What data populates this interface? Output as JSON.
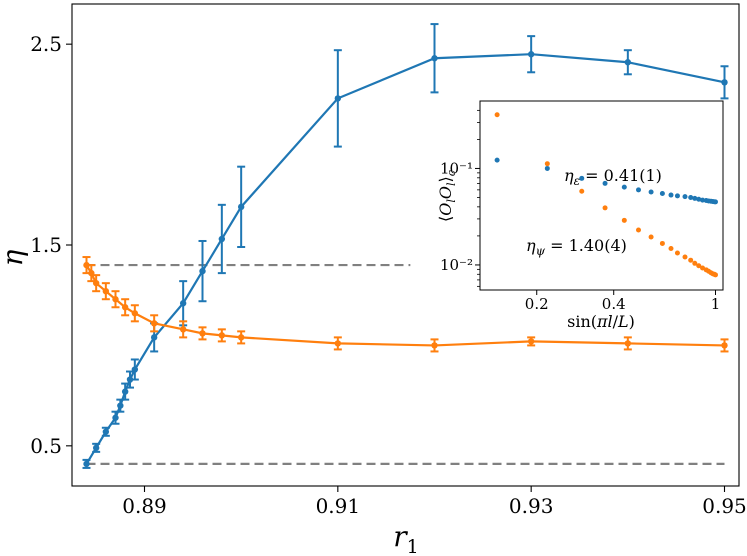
{
  "chart_data": [
    {
      "type": "line",
      "role": "main",
      "xlabel": "r",
      "xlabel_sub": "1",
      "ylabel": "η",
      "xlim": [
        0.8825,
        0.9515
      ],
      "ylim": [
        0.3,
        2.7
      ],
      "xticks": [
        0.89,
        0.91,
        0.93,
        0.95
      ],
      "xtick_labels": [
        "0.89",
        "0.91",
        "0.93",
        "0.95"
      ],
      "yticks": [
        0.5,
        1.5,
        2.5
      ],
      "ytick_labels": [
        "0.5",
        "1.5",
        "2.5"
      ],
      "series": [
        {
          "name": "blue",
          "color": "#1f77b4",
          "x": [
            0.884,
            0.885,
            0.886,
            0.887,
            0.8875,
            0.888,
            0.8885,
            0.889,
            0.891,
            0.894,
            0.896,
            0.898,
            0.9,
            0.91,
            0.92,
            0.93,
            0.94,
            0.95
          ],
          "y": [
            0.41,
            0.49,
            0.57,
            0.64,
            0.7,
            0.77,
            0.83,
            0.88,
            1.04,
            1.21,
            1.37,
            1.53,
            1.69,
            2.23,
            2.43,
            2.45,
            2.41,
            2.31
          ],
          "err": [
            0.02,
            0.02,
            0.02,
            0.03,
            0.03,
            0.04,
            0.04,
            0.05,
            0.07,
            0.11,
            0.15,
            0.17,
            0.2,
            0.24,
            0.17,
            0.09,
            0.06,
            0.08
          ]
        },
        {
          "name": "orange",
          "color": "#ff7f0e",
          "x": [
            0.884,
            0.8845,
            0.885,
            0.886,
            0.887,
            0.888,
            0.889,
            0.891,
            0.894,
            0.896,
            0.898,
            0.9,
            0.91,
            0.92,
            0.93,
            0.94,
            0.95
          ],
          "y": [
            1.4,
            1.36,
            1.31,
            1.27,
            1.23,
            1.19,
            1.16,
            1.11,
            1.08,
            1.06,
            1.05,
            1.04,
            1.01,
            1.0,
            1.02,
            1.01,
            1.0
          ],
          "err": [
            0.04,
            0.04,
            0.04,
            0.04,
            0.04,
            0.04,
            0.04,
            0.04,
            0.04,
            0.03,
            0.03,
            0.03,
            0.03,
            0.03,
            0.02,
            0.03,
            0.03
          ]
        }
      ],
      "reference_lines": [
        {
          "y": 1.4,
          "x_start": 0.884,
          "x_end": 0.9175,
          "color": "#808080",
          "style": "dashed"
        },
        {
          "y": 0.41,
          "x_start": 0.884,
          "x_end": 0.95,
          "color": "#808080",
          "style": "dashed"
        }
      ]
    },
    {
      "type": "scatter",
      "role": "inset",
      "scale": "log-log",
      "ylabel": "⟨O_l O_l⟩_c",
      "xlabel": "sin(πl/L)",
      "xlim": [
        0.12,
        1.07
      ],
      "ylim": [
        0.0055,
        0.5
      ],
      "xticks": [
        0.2,
        0.4,
        1
      ],
      "xtick_labels": [
        "0.2",
        "0.4",
        "1"
      ],
      "yticks": [
        0.01,
        0.1
      ],
      "ytick_labels": [
        "10⁻²",
        "10⁻¹"
      ],
      "annotations": [
        "η_ε = 0.41(1)",
        "η_ψ = 1.40(4)"
      ],
      "series": [
        {
          "name": "epsilon",
          "color": "#1f77b4",
          "x": [
            0.14,
            0.22,
            0.3,
            0.37,
            0.44,
            0.5,
            0.56,
            0.62,
            0.67,
            0.71,
            0.76,
            0.8,
            0.83,
            0.86,
            0.89,
            0.92,
            0.94,
            0.96,
            0.975,
            0.99,
            1.0
          ],
          "y": [
            0.122,
            0.1,
            0.079,
            0.07,
            0.064,
            0.06,
            0.057,
            0.055,
            0.053,
            0.052,
            0.051,
            0.05,
            0.049,
            0.048,
            0.047,
            0.0465,
            0.046,
            0.0457,
            0.0454,
            0.0452,
            0.045
          ]
        },
        {
          "name": "psi",
          "color": "#ff7f0e",
          "x": [
            0.14,
            0.22,
            0.3,
            0.37,
            0.44,
            0.5,
            0.56,
            0.62,
            0.67,
            0.71,
            0.76,
            0.8,
            0.83,
            0.86,
            0.89,
            0.92,
            0.94,
            0.96,
            0.975,
            0.99,
            1.0
          ],
          "y": [
            0.36,
            0.112,
            0.058,
            0.039,
            0.029,
            0.023,
            0.0195,
            0.0167,
            0.0148,
            0.0133,
            0.0121,
            0.0112,
            0.0104,
            0.0098,
            0.0093,
            0.0089,
            0.0086,
            0.0083,
            0.0081,
            0.008,
            0.0079
          ]
        }
      ]
    }
  ]
}
